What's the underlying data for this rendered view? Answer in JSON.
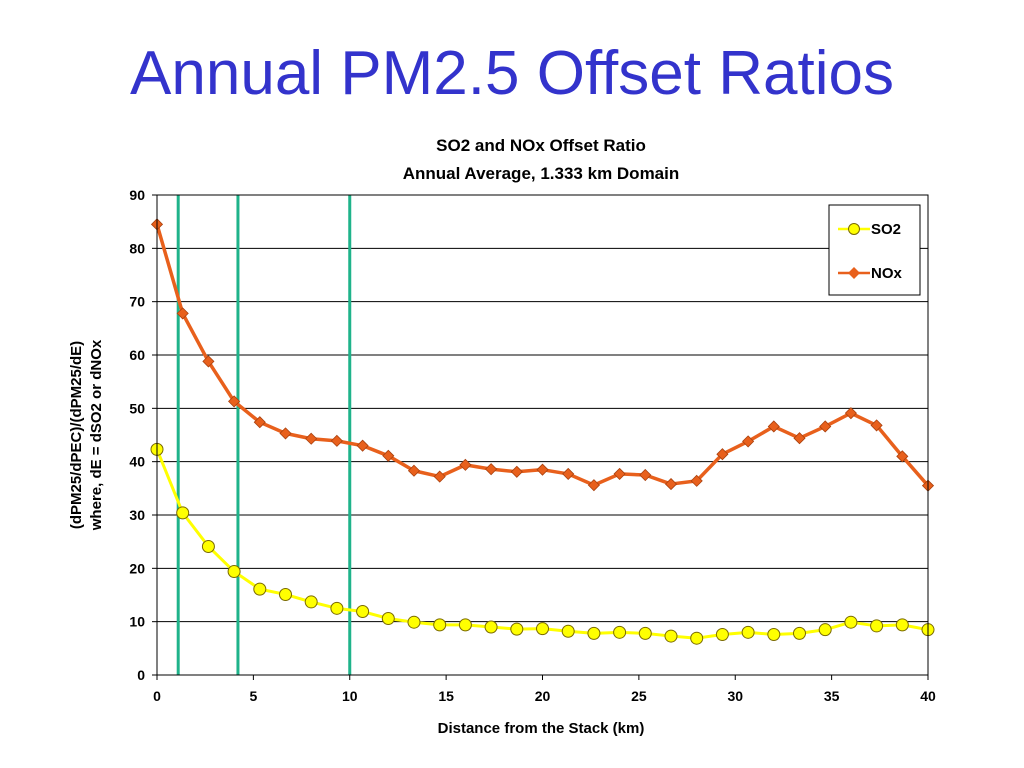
{
  "slide": {
    "title": "Annual PM2.5 Offset Ratios"
  },
  "chart_data": {
    "type": "line",
    "title": "SO2 and NOx Offset Ratio",
    "subtitle": "Annual Average, 1.333 km Domain",
    "xlabel": "Distance from the Stack (km)",
    "ylabel_lines": [
      "(dPM25/dPEC)/(dPM25/dE)",
      "where, dE = dSO2 or dNOx"
    ],
    "xlim": [
      0,
      40
    ],
    "ylim": [
      0,
      90
    ],
    "xticks": [
      0,
      5,
      10,
      15,
      20,
      25,
      30,
      35,
      40
    ],
    "yticks": [
      0,
      10,
      20,
      30,
      40,
      50,
      60,
      70,
      80,
      90
    ],
    "grid": "horizontal",
    "legend_position": "top-right",
    "vertical_lines": [
      1.1,
      4.2,
      10
    ],
    "colors": {
      "title": "#3333cc",
      "so2_fill": "#ffff00",
      "so2_line": "#ffff00",
      "so2_marker_edge": "#7a6a00",
      "nox_line": "#e8601c",
      "nox_marker": "#e8601c",
      "vertical_line": "#1fb38a",
      "grid": "#000000"
    },
    "x": [
      0,
      1.333,
      2.667,
      4,
      5.333,
      6.667,
      8,
      9.333,
      10.667,
      12,
      13.333,
      14.667,
      16,
      17.333,
      18.667,
      20,
      21.333,
      22.667,
      24,
      25.333,
      26.667,
      28,
      29.333,
      30.667,
      32,
      33.333,
      34.667,
      36,
      37.333,
      38.667,
      40
    ],
    "series": [
      {
        "name": "SO2",
        "marker": "circle",
        "values": [
          42.3,
          30.4,
          24.1,
          19.4,
          16.1,
          15.1,
          13.7,
          12.5,
          11.9,
          10.6,
          9.9,
          9.4,
          9.4,
          9.0,
          8.6,
          8.7,
          8.2,
          7.8,
          8.0,
          7.8,
          7.3,
          6.9,
          7.6,
          8.0,
          7.6,
          7.8,
          8.5,
          9.9,
          9.2,
          9.4,
          8.5
        ]
      },
      {
        "name": "NOx",
        "marker": "diamond",
        "values": [
          84.5,
          67.8,
          58.8,
          51.3,
          47.4,
          45.3,
          44.3,
          43.9,
          43.0,
          41.1,
          38.3,
          37.2,
          39.4,
          38.6,
          38.1,
          38.5,
          37.7,
          35.6,
          37.7,
          37.5,
          35.8,
          36.4,
          41.4,
          43.8,
          46.6,
          44.4,
          46.6,
          49.1,
          46.8,
          41.0,
          35.5
        ]
      }
    ]
  }
}
